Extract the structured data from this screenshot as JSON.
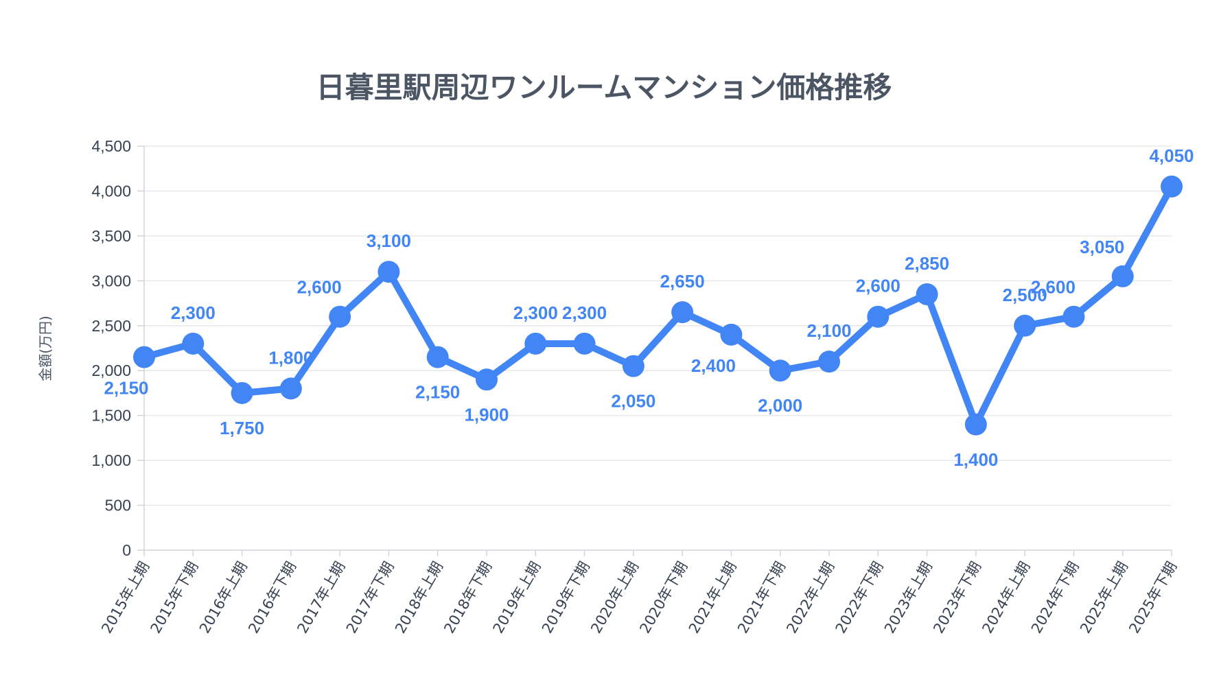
{
  "chart_data": {
    "type": "line",
    "title": "日暮里駅周辺ワンルームマンション価格推移",
    "xlabel": "",
    "ylabel": "金額(万円)",
    "ylim": [
      0,
      4500
    ],
    "yticks": [
      0,
      500,
      1000,
      1500,
      2000,
      2500,
      3000,
      3500,
      4000,
      4500
    ],
    "ytick_labels": [
      "0",
      "500",
      "1,000",
      "1,500",
      "2,000",
      "2,500",
      "3,000",
      "3,500",
      "4,000",
      "4,500"
    ],
    "grid": true,
    "categories": [
      "2015年上期",
      "2015年下期",
      "2016年上期",
      "2016年下期",
      "2017年上期",
      "2017年下期",
      "2018年上期",
      "2018年下期",
      "2019年上期",
      "2019年下期",
      "2020年上期",
      "2020年下期",
      "2021年上期",
      "2021年下期",
      "2022年上期",
      "2022年下期",
      "2023年上期",
      "2023年下期",
      "2024年上期",
      "2024年下期",
      "2025年上期",
      "2025年下期"
    ],
    "series": [
      {
        "color": "#4285f4",
        "values": [
          2150,
          2300,
          1750,
          1800,
          2600,
          3100,
          2150,
          1900,
          2300,
          2300,
          2050,
          2650,
          2400,
          2000,
          2100,
          2600,
          2850,
          1400,
          2500,
          2600,
          3050,
          4050
        ],
        "value_labels": [
          "2,150",
          "2,300",
          "1,750",
          "1,800",
          "2,600",
          "3,100",
          "2,150",
          "1,900",
          "2,300",
          "2,300",
          "2,050",
          "2,650",
          "2,400",
          "2,000",
          "2,100",
          "2,600",
          "2,850",
          "1,400",
          "2,500",
          "2,600",
          "3,050",
          "4,050"
        ],
        "label_positions": [
          "below-left",
          "above",
          "below",
          "above",
          "above-left",
          "above",
          "below",
          "below",
          "above",
          "above",
          "below",
          "above",
          "below-left",
          "below",
          "above",
          "above",
          "above",
          "below",
          "above",
          "above-left",
          "above-left",
          "above"
        ]
      }
    ]
  }
}
